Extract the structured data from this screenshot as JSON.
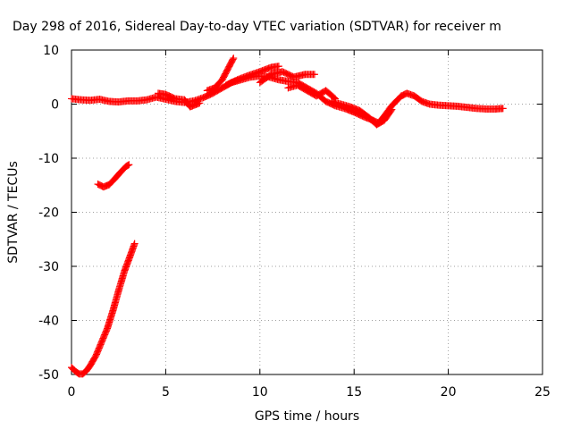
{
  "chart_data": {
    "type": "scatter",
    "title": "Day 298 of 2016, Sidereal Day-to-day VTEC variation (SDTVAR) for receiver m",
    "xlabel": "GPS time / hours",
    "ylabel": "SDTVAR / TECUs",
    "xlim": [
      0,
      25
    ],
    "ylim": [
      -50,
      10
    ],
    "xticks": [
      0,
      5,
      10,
      15,
      20,
      25
    ],
    "yticks": [
      -50,
      -40,
      -30,
      -20,
      -10,
      0,
      10
    ],
    "grid": true,
    "legend": "none",
    "marker": "plus",
    "series": [
      {
        "color": "#ff0000",
        "segments": [
          [
            [
              0,
              -48.7
            ],
            [
              0.2,
              -49.4
            ],
            [
              0.4,
              -49.9
            ],
            [
              0.6,
              -49.9
            ],
            [
              0.8,
              -49.3
            ],
            [
              1.0,
              -48.3
            ],
            [
              1.3,
              -46.5
            ],
            [
              1.6,
              -44.0
            ],
            [
              1.9,
              -41.5
            ],
            [
              2.2,
              -38.2
            ],
            [
              2.5,
              -34.5
            ],
            [
              2.8,
              -31.0
            ],
            [
              3.1,
              -28.2
            ],
            [
              3.35,
              -25.8
            ]
          ],
          [
            [
              1.4,
              -14.8
            ],
            [
              1.7,
              -15.3
            ],
            [
              2.0,
              -14.9
            ],
            [
              2.3,
              -13.8
            ],
            [
              2.6,
              -12.6
            ],
            [
              2.9,
              -11.5
            ],
            [
              3.05,
              -11.2
            ]
          ],
          [
            [
              0,
              1.0
            ],
            [
              0.5,
              0.8
            ],
            [
              1.0,
              0.7
            ],
            [
              1.5,
              0.9
            ],
            [
              2.0,
              0.5
            ],
            [
              2.5,
              0.4
            ],
            [
              3.0,
              0.6
            ],
            [
              3.5,
              0.6
            ],
            [
              4.0,
              0.8
            ],
            [
              4.5,
              1.3
            ],
            [
              5.0,
              0.9
            ],
            [
              5.5,
              0.5
            ],
            [
              6.0,
              0.3
            ],
            [
              6.5,
              0.6
            ],
            [
              7.0,
              1.2
            ],
            [
              7.5,
              2.0
            ],
            [
              8.0,
              3.0
            ],
            [
              8.5,
              4.0
            ],
            [
              9.0,
              4.5
            ],
            [
              9.5,
              5.0
            ],
            [
              10.0,
              5.2
            ],
            [
              10.5,
              5.0
            ],
            [
              11.0,
              4.5
            ],
            [
              11.5,
              4.2
            ],
            [
              12.0,
              4.0
            ],
            [
              12.5,
              3.0
            ],
            [
              13.0,
              2.0
            ],
            [
              13.5,
              0.5
            ],
            [
              14.0,
              -0.3
            ],
            [
              14.5,
              -0.8
            ],
            [
              15.0,
              -1.5
            ],
            [
              15.5,
              -2.3
            ],
            [
              16.0,
              -3.0
            ],
            [
              16.3,
              -3.5
            ],
            [
              16.6,
              -2.2
            ],
            [
              17.0,
              -0.3
            ],
            [
              17.5,
              1.5
            ],
            [
              17.8,
              2.0
            ],
            [
              18.2,
              1.5
            ],
            [
              18.6,
              0.5
            ],
            [
              19.0,
              0.0
            ],
            [
              19.5,
              -0.2
            ],
            [
              20.0,
              -0.3
            ],
            [
              20.5,
              -0.4
            ],
            [
              21.0,
              -0.6
            ],
            [
              21.5,
              -0.8
            ],
            [
              22.0,
              -0.9
            ],
            [
              22.5,
              -0.9
            ],
            [
              22.9,
              -0.8
            ]
          ],
          [
            [
              7.2,
              2.5
            ],
            [
              7.6,
              3.0
            ],
            [
              8.0,
              4.5
            ],
            [
              8.3,
              6.5
            ],
            [
              8.6,
              8.5
            ]
          ],
          [
            [
              8.2,
              3.5
            ],
            [
              8.8,
              4.5
            ],
            [
              9.4,
              5.3
            ],
            [
              10.0,
              6.0
            ],
            [
              10.6,
              6.8
            ],
            [
              11.0,
              7.0
            ]
          ],
          [
            [
              10.0,
              4.0
            ],
            [
              10.6,
              5.5
            ],
            [
              11.2,
              6.0
            ],
            [
              11.8,
              5.0
            ],
            [
              12.4,
              5.5
            ],
            [
              12.9,
              5.5
            ]
          ],
          [
            [
              11.5,
              3.0
            ],
            [
              12.0,
              3.5
            ],
            [
              12.5,
              2.5
            ],
            [
              13.0,
              1.5
            ],
            [
              13.5,
              2.5
            ],
            [
              14.0,
              1.0
            ]
          ],
          [
            [
              13.8,
              0.5
            ],
            [
              14.3,
              0.0
            ],
            [
              14.8,
              -0.5
            ],
            [
              15.3,
              -1.2
            ],
            [
              15.8,
              -2.5
            ],
            [
              16.2,
              -3.8
            ],
            [
              16.6,
              -3.0
            ],
            [
              17.0,
              -1.0
            ]
          ],
          [
            [
              4.6,
              2.0
            ],
            [
              5.0,
              1.8
            ],
            [
              5.5,
              1.0
            ],
            [
              6.0,
              0.8
            ],
            [
              6.3,
              -0.5
            ],
            [
              6.8,
              0.2
            ]
          ]
        ]
      }
    ]
  }
}
